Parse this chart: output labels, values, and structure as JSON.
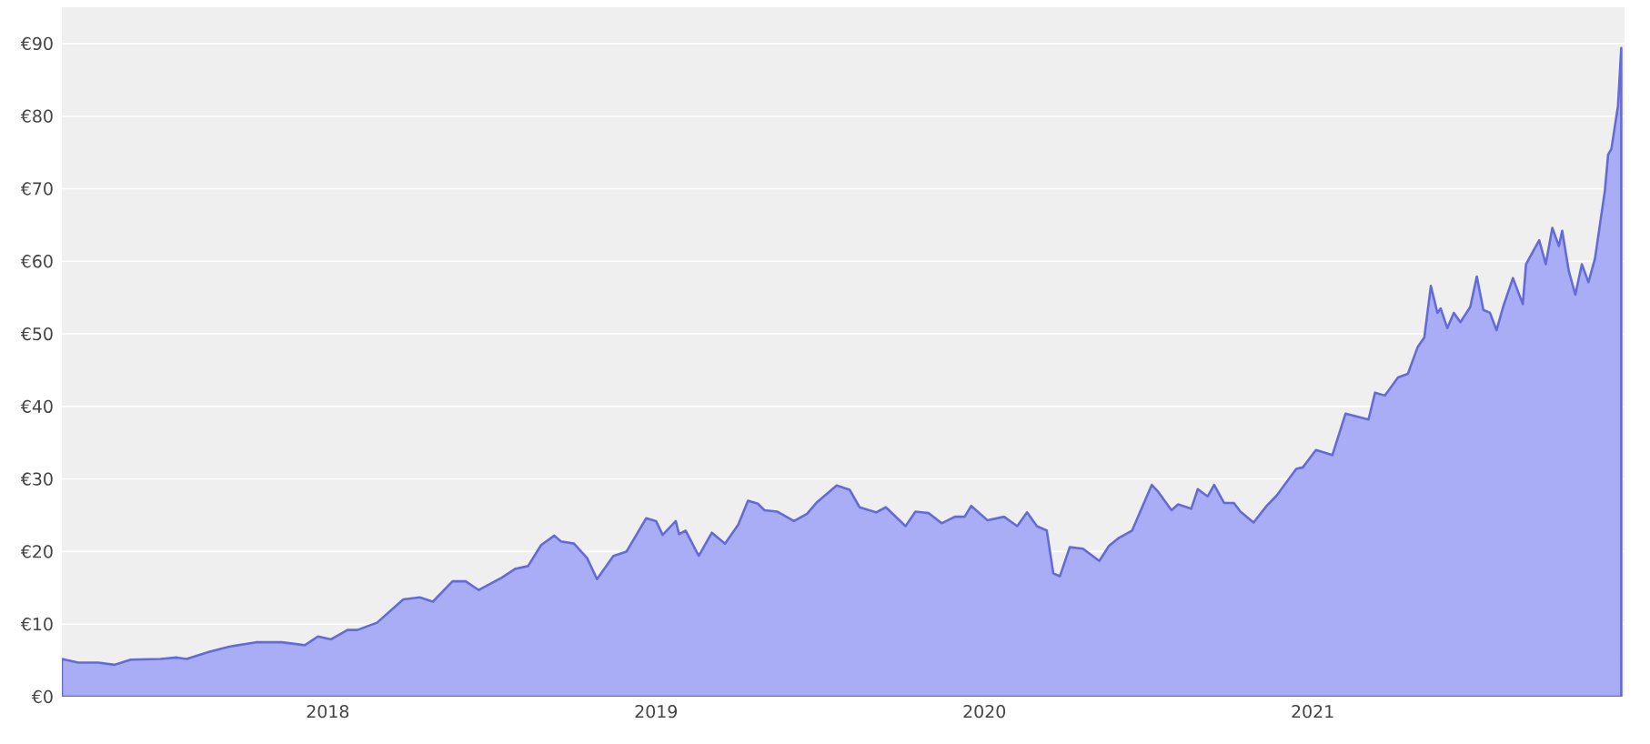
{
  "chart_data": {
    "type": "area",
    "color": "#a9adf5",
    "x": [
      2017.19,
      2017.24,
      2017.3,
      2017.35,
      2017.4,
      2017.49,
      2017.54,
      2017.57,
      2017.64,
      2017.7,
      2017.78,
      2017.86,
      2017.93,
      2017.97,
      2018.01,
      2018.06,
      2018.09,
      2018.15,
      2018.23,
      2018.28,
      2018.32,
      2018.38,
      2018.42,
      2018.46,
      2018.53,
      2018.57,
      2018.61,
      2018.65,
      2018.69,
      2018.71,
      2018.75,
      2018.79,
      2018.82,
      2018.87,
      2018.91,
      2018.97,
      2019.0,
      2019.02,
      2019.06,
      2019.07,
      2019.09,
      2019.13,
      2019.17,
      2019.21,
      2019.25,
      2019.28,
      2019.31,
      2019.33,
      2019.37,
      2019.42,
      2019.46,
      2019.49,
      2019.55,
      2019.59,
      2019.62,
      2019.67,
      2019.7,
      2019.76,
      2019.79,
      2019.83,
      2019.87,
      2019.91,
      2019.94,
      2019.96,
      2020.01,
      2020.06,
      2020.1,
      2020.13,
      2020.16,
      2020.19,
      2020.21,
      2020.23,
      2020.26,
      2020.3,
      2020.35,
      2020.38,
      2020.41,
      2020.45,
      2020.51,
      2020.53,
      2020.57,
      2020.59,
      2020.63,
      2020.65,
      2020.68,
      2020.7,
      2020.73,
      2020.76,
      2020.78,
      2020.82,
      2020.86,
      2020.89,
      2020.95,
      2020.97,
      2021.01,
      2021.06,
      2021.1,
      2021.17,
      2021.19,
      2021.22,
      2021.26,
      2021.29,
      2021.32,
      2021.34,
      2021.36,
      2021.38,
      2021.39,
      2021.41,
      2021.43,
      2021.45,
      2021.48,
      2021.5,
      2021.52,
      2021.54,
      2021.56,
      2021.58,
      2021.61,
      2021.64,
      2021.65,
      2021.69,
      2021.71,
      2021.73,
      2021.75,
      2021.76,
      2021.78,
      2021.8,
      2021.82,
      2021.84,
      2021.86,
      2021.89,
      2021.9,
      2021.91,
      2021.93,
      2021.94
    ],
    "values": [
      5.2,
      4.7,
      4.7,
      4.4,
      5.1,
      5.2,
      5.4,
      5.2,
      6.2,
      6.9,
      7.5,
      7.5,
      7.1,
      8.3,
      7.9,
      9.2,
      9.2,
      10.2,
      13.4,
      13.7,
      13.1,
      15.9,
      15.9,
      14.7,
      16.4,
      17.6,
      18.0,
      20.9,
      22.2,
      21.4,
      21.1,
      19.1,
      16.2,
      19.4,
      20.0,
      24.6,
      24.2,
      22.3,
      24.2,
      22.4,
      22.9,
      19.4,
      22.6,
      21.1,
      23.7,
      27.0,
      26.6,
      25.7,
      25.5,
      24.2,
      25.2,
      26.8,
      29.1,
      28.5,
      26.1,
      25.4,
      26.1,
      23.5,
      25.5,
      25.3,
      23.9,
      24.8,
      24.8,
      26.3,
      24.3,
      24.8,
      23.5,
      25.4,
      23.5,
      22.9,
      17.0,
      16.6,
      20.6,
      20.4,
      18.7,
      20.8,
      21.9,
      22.9,
      29.2,
      28.2,
      25.7,
      26.5,
      25.9,
      28.6,
      27.6,
      29.2,
      26.7,
      26.7,
      25.5,
      24.0,
      26.3,
      27.7,
      31.4,
      31.6,
      34.0,
      33.3,
      39.0,
      38.2,
      41.9,
      41.5,
      44.0,
      44.5,
      48.2,
      49.5,
      56.6,
      52.9,
      53.5,
      50.8,
      52.9,
      51.6,
      53.7,
      57.9,
      53.3,
      52.9,
      50.5,
      53.7,
      57.7,
      54.1,
      59.6,
      62.9,
      59.6,
      64.6,
      62.1,
      64.2,
      58.7,
      55.4,
      59.6,
      57.1,
      60.4,
      69.7,
      74.7,
      75.5,
      81.4,
      89.4
    ],
    "xlim": [
      2017.19,
      2021.95
    ],
    "xticks": [
      2018,
      2019,
      2020,
      2021
    ],
    "ylim": [
      0,
      95
    ],
    "yticks": [
      {
        "value": 0,
        "label": "€0"
      },
      {
        "value": 10,
        "label": "€10"
      },
      {
        "value": 20,
        "label": "€20"
      },
      {
        "value": 30,
        "label": "€30"
      },
      {
        "value": 40,
        "label": "€40"
      },
      {
        "value": 50,
        "label": "€50"
      },
      {
        "value": 60,
        "label": "€60"
      },
      {
        "value": 70,
        "label": "€70"
      },
      {
        "value": 80,
        "label": "€80"
      },
      {
        "value": 90,
        "label": "€90"
      }
    ],
    "grid": "y"
  }
}
